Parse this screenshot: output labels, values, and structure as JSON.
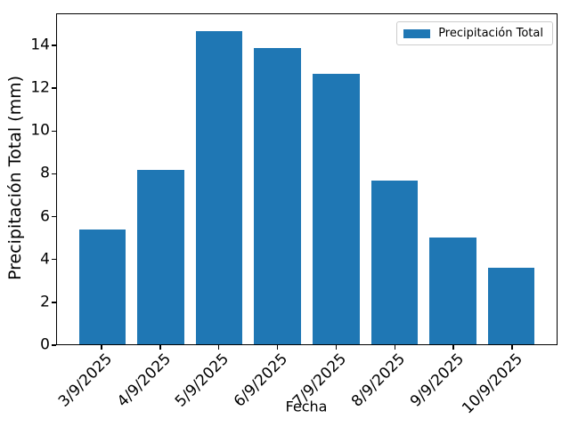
{
  "chart_data": {
    "type": "bar",
    "title": "",
    "xlabel": "Fecha",
    "ylabel": "Precipitación Total (mm)",
    "categories": [
      "3/9/2025",
      "4/9/2025",
      "5/9/2025",
      "6/9/2025",
      "7/9/2025",
      "8/9/2025",
      "9/9/2025",
      "10/9/2025"
    ],
    "values": [
      5.4,
      8.2,
      14.7,
      13.9,
      12.7,
      7.7,
      5.0,
      3.6
    ],
    "legend": {
      "label": "Precipitación Total",
      "position": "upper right"
    },
    "bar_color": "#1f77b4",
    "axis_color": "#000000",
    "ylim": [
      0,
      15.5
    ],
    "yticks": [
      0,
      2,
      4,
      6,
      8,
      10,
      12,
      14
    ],
    "grid": false,
    "xtick_rotation": 45
  }
}
